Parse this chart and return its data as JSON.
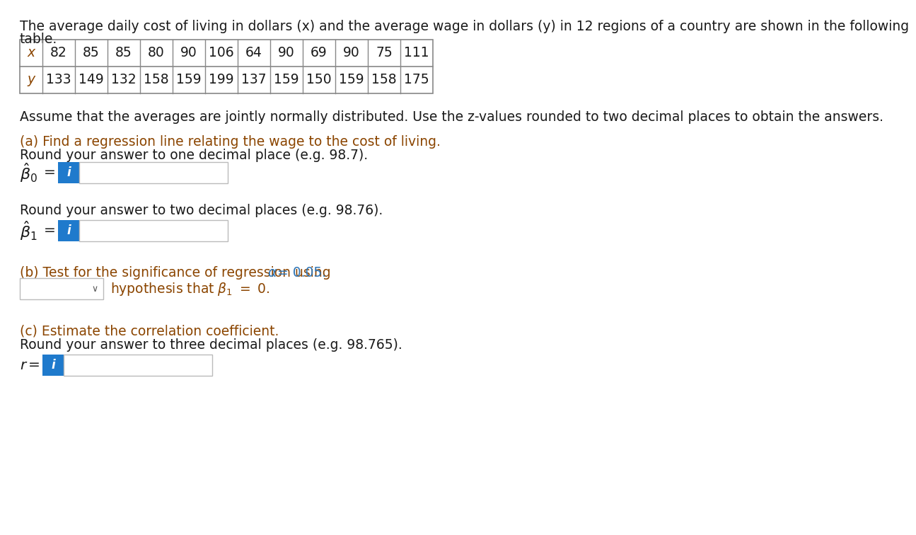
{
  "bg_color": "#ffffff",
  "text_color": "#1a1a1a",
  "brown_color": "#8B4500",
  "blue_color": "#2E75B6",
  "input_box_color": "#1F7ACC",
  "table_border": "#888888",
  "x_values": [
    "x",
    "82",
    "85",
    "85",
    "80",
    "90",
    "106",
    "64",
    "90",
    "69",
    "90",
    "75",
    "111"
  ],
  "y_values": [
    "y",
    "133",
    "149",
    "132",
    "158",
    "159",
    "199",
    "137",
    "159",
    "150",
    "159",
    "158",
    "175"
  ],
  "header_line1": "The average daily cost of living in dollars (x) and the average wage in dollars (y) in 12 regions of a country are shown in the following",
  "header_line2": "table.",
  "assume_text": "Assume that the averages are jointly normally distributed. Use the z-values rounded to two decimal places to obtain the answers.",
  "part_a_line1": "(a) Find a regression line relating the wage to the cost of living.",
  "part_a_line2": "Round your answer to one decimal place (e.g. 98.7).",
  "round_two_text": "Round your answer to two decimal places (e.g. 98.76).",
  "part_b_prefix": "(b) Test for the significance of regression using ",
  "part_b_alpha": "α = 0.05.",
  "hypothesis_text": "hypothesis that β₁ = 0.",
  "part_c_line1": "(c) Estimate the correlation coefficient.",
  "part_c_line2": "Round your answer to three decimal places (e.g. 98.765)."
}
